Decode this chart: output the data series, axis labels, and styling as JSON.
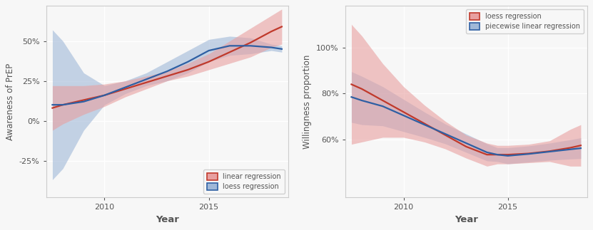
{
  "left": {
    "ylabel": "Awareness of PrEP",
    "xlabel": "Year",
    "xlim": [
      2007.2,
      2018.8
    ],
    "ylim": [
      -0.48,
      0.72
    ],
    "yticks": [
      -0.25,
      0.0,
      0.25,
      0.5
    ],
    "ytick_labels": [
      "-25%",
      "0%",
      "25%",
      "50%"
    ],
    "xticks": [
      2010,
      2015
    ],
    "linear_color": "#c0392b",
    "loess_color": "#2e5fa3",
    "linear_fill": "#e8a0a0",
    "loess_fill": "#a0b8d8",
    "legend": [
      "linear regression",
      "loess regression"
    ],
    "linear_line": {
      "x": [
        2007.5,
        2008,
        2009,
        2010,
        2011,
        2012,
        2013,
        2014,
        2015,
        2016,
        2017,
        2018,
        2018.5
      ],
      "y": [
        0.08,
        0.1,
        0.13,
        0.16,
        0.2,
        0.24,
        0.28,
        0.32,
        0.37,
        0.43,
        0.49,
        0.56,
        0.59
      ],
      "y_upper": [
        0.22,
        0.22,
        0.22,
        0.23,
        0.25,
        0.28,
        0.31,
        0.36,
        0.42,
        0.5,
        0.58,
        0.66,
        0.7
      ],
      "y_lower": [
        -0.06,
        -0.02,
        0.04,
        0.09,
        0.15,
        0.2,
        0.25,
        0.28,
        0.32,
        0.36,
        0.4,
        0.46,
        0.48
      ]
    },
    "loess_line": {
      "x": [
        2007.5,
        2008,
        2009,
        2010,
        2011,
        2012,
        2013,
        2014,
        2015,
        2016,
        2017,
        2018,
        2018.5
      ],
      "y": [
        0.1,
        0.1,
        0.12,
        0.16,
        0.21,
        0.26,
        0.31,
        0.37,
        0.44,
        0.47,
        0.47,
        0.46,
        0.45
      ],
      "y_upper": [
        0.57,
        0.5,
        0.3,
        0.22,
        0.25,
        0.3,
        0.37,
        0.44,
        0.51,
        0.53,
        0.52,
        0.48,
        0.47
      ],
      "y_lower": [
        -0.37,
        -0.3,
        -0.06,
        0.1,
        0.17,
        0.22,
        0.25,
        0.3,
        0.37,
        0.41,
        0.42,
        0.44,
        0.43
      ]
    }
  },
  "right": {
    "ylabel": "Willingness proportion",
    "xlabel": "Year",
    "xlim": [
      2007.2,
      2018.8
    ],
    "ylim": [
      0.35,
      1.18
    ],
    "yticks": [
      0.6,
      0.8,
      1.0
    ],
    "ytick_labels": [
      "60%",
      "80%",
      "100%"
    ],
    "xticks": [
      2010,
      2015
    ],
    "loess_color": "#c0392b",
    "piecewise_color": "#2e5fa3",
    "loess_fill": "#e8a0a0",
    "piecewise_fill": "#a0b8d8",
    "legend": [
      "loess regression",
      "piecewise linear regression"
    ],
    "loess_line": {
      "x": [
        2007.5,
        2008,
        2009,
        2010,
        2011,
        2012,
        2013,
        2014,
        2014.5,
        2015,
        2016,
        2017,
        2018,
        2018.5
      ],
      "y": [
        0.84,
        0.82,
        0.77,
        0.72,
        0.67,
        0.62,
        0.57,
        0.535,
        0.535,
        0.535,
        0.54,
        0.55,
        0.565,
        0.575
      ],
      "y_upper": [
        1.1,
        1.05,
        0.93,
        0.83,
        0.75,
        0.68,
        0.62,
        0.585,
        0.575,
        0.575,
        0.58,
        0.595,
        0.645,
        0.665
      ],
      "y_lower": [
        0.58,
        0.59,
        0.61,
        0.61,
        0.59,
        0.56,
        0.52,
        0.485,
        0.495,
        0.495,
        0.5,
        0.505,
        0.485,
        0.485
      ]
    },
    "piecewise_line": {
      "x": [
        2007.5,
        2008,
        2009,
        2010,
        2011,
        2012,
        2013,
        2014,
        2014.5,
        2015,
        2016,
        2017,
        2018,
        2018.5
      ],
      "y": [
        0.785,
        0.77,
        0.745,
        0.705,
        0.665,
        0.625,
        0.585,
        0.545,
        0.535,
        0.53,
        0.538,
        0.548,
        0.558,
        0.563
      ],
      "y_upper": [
        0.895,
        0.875,
        0.83,
        0.775,
        0.72,
        0.668,
        0.625,
        0.582,
        0.565,
        0.565,
        0.573,
        0.585,
        0.6,
        0.608
      ],
      "y_lower": [
        0.675,
        0.665,
        0.66,
        0.635,
        0.61,
        0.582,
        0.545,
        0.508,
        0.505,
        0.495,
        0.503,
        0.511,
        0.516,
        0.518
      ]
    }
  },
  "bg_color": "#f7f7f7",
  "plot_bg": "#f7f7f7",
  "grid_color": "#ffffff",
  "font_color": "#555555",
  "spine_color": "#cccccc"
}
